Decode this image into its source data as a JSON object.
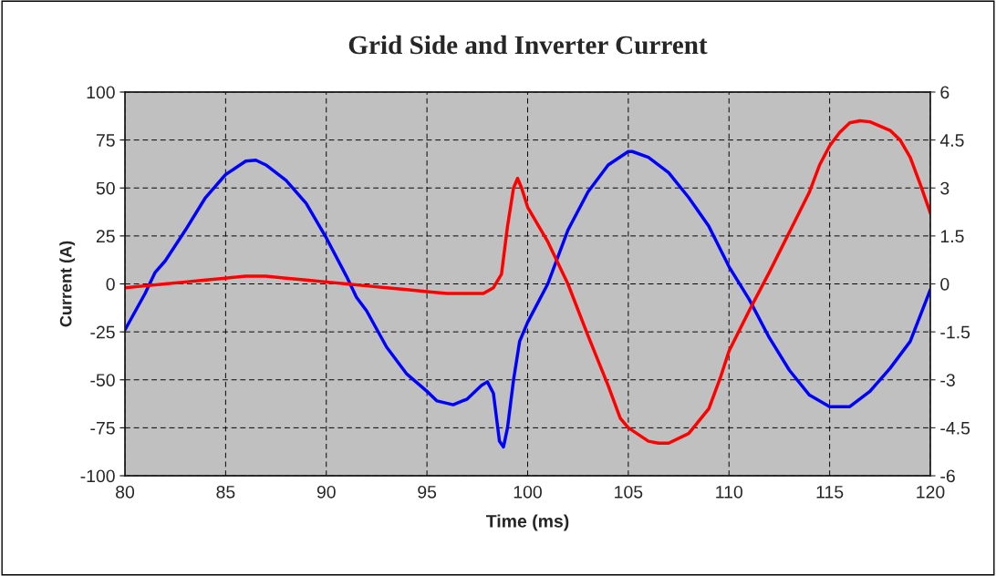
{
  "chart_data": {
    "type": "line",
    "title": "Grid Side and Inverter Current",
    "xlabel": "Time (ms)",
    "ylabel": "Current (A)",
    "xlim": [
      80,
      120
    ],
    "xticks": [
      80,
      85,
      90,
      95,
      100,
      105,
      110,
      115,
      120
    ],
    "ylim": [
      -100,
      100
    ],
    "yticks": [
      -100,
      -75,
      -50,
      -25,
      0,
      25,
      50,
      75,
      100
    ],
    "y2lim": [
      -6,
      6
    ],
    "y2ticks": [
      -6,
      -4.5,
      -3,
      -1.5,
      0,
      1.5,
      3,
      4.5,
      6
    ],
    "grid": true,
    "marker": "none",
    "line_style": "solid",
    "series": [
      {
        "color": "#0000ff",
        "x": [
          80,
          81,
          81.5,
          82,
          83,
          84,
          85,
          86,
          86.5,
          87,
          88,
          89,
          90,
          91,
          91.5,
          92,
          93,
          94,
          95,
          95.5,
          96.3,
          97,
          97.7,
          98,
          98.3,
          98.6,
          98.8,
          99,
          99.3,
          99.6,
          100,
          101,
          102,
          103,
          104,
          105,
          105.2,
          106,
          107,
          108,
          109,
          110,
          111,
          112,
          113,
          114,
          115,
          116,
          117,
          118,
          119,
          120
        ],
        "values": [
          -24,
          -5,
          6,
          12,
          28,
          45,
          57,
          64,
          64.5,
          62,
          54,
          42,
          24,
          4,
          -7,
          -14,
          -33,
          -47,
          -56,
          -61,
          -63,
          -60,
          -53,
          -51,
          -57,
          -82,
          -85,
          -75,
          -50,
          -30,
          -20,
          0,
          28,
          48,
          62,
          69,
          69,
          66,
          58,
          45,
          30,
          9,
          -8,
          -28,
          -45,
          -58,
          -64,
          -64,
          -56,
          -44,
          -30,
          -3
        ]
      },
      {
        "color": "#ff0000",
        "x": [
          80,
          81,
          82,
          83,
          84,
          85,
          86,
          87,
          88,
          89,
          90,
          91,
          92,
          93,
          94,
          95,
          96,
          97,
          97.8,
          98.3,
          98.7,
          99,
          99.3,
          99.5,
          99.7,
          100,
          101,
          102,
          103,
          104,
          104.6,
          105,
          106,
          106.5,
          107,
          108,
          109,
          109.6,
          110,
          111,
          112,
          113,
          114,
          114.5,
          115,
          115.5,
          116,
          116.5,
          117,
          118,
          118.5,
          119,
          119.5,
          120
        ],
        "values": [
          -2,
          -1,
          0,
          1,
          2,
          3,
          4,
          4,
          3,
          2,
          1,
          0,
          -1,
          -2,
          -3,
          -4,
          -5,
          -5,
          -5,
          -2,
          5,
          30,
          50,
          55,
          50,
          40,
          22,
          0,
          -27,
          -53,
          -70,
          -75,
          -82,
          -83,
          -83,
          -78,
          -65,
          -48,
          -35,
          -14,
          6,
          27,
          48,
          62,
          72,
          79,
          84,
          85,
          84.5,
          80,
          75,
          66,
          52,
          37
        ]
      }
    ]
  }
}
